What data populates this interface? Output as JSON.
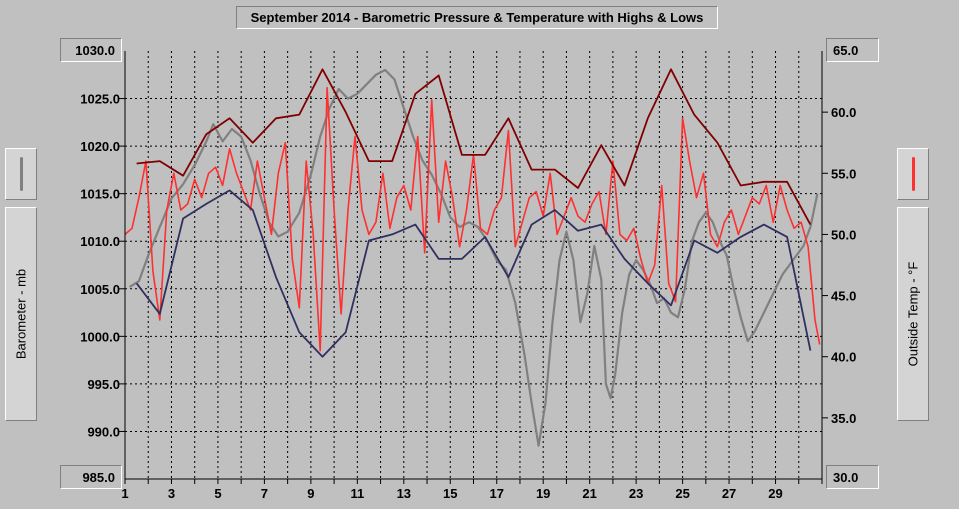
{
  "chart_data": {
    "type": "line",
    "title": "September 2014 - Barometric Pressure & Temperature with Highs & Lows",
    "left_axis": {
      "label": "Barometer - mb",
      "min": 985.0,
      "max": 1030.0,
      "ticks": [
        "990.0",
        "995.0",
        "1000.0",
        "1005.0",
        "1010.0",
        "1015.0",
        "1020.0",
        "1025.0"
      ],
      "tick_values": [
        990,
        995,
        1000,
        1005,
        1010,
        1015,
        1020,
        1025
      ],
      "top_label": "1030.0",
      "bottom_label": "985.0"
    },
    "right_axis": {
      "label": "Outside Temp - °F",
      "min": 30.0,
      "max": 65.0,
      "ticks": [
        "35.0",
        "40.0",
        "45.0",
        "50.0",
        "55.0",
        "60.0"
      ],
      "tick_values": [
        35,
        40,
        45,
        50,
        55,
        60
      ],
      "top_label": "65.0",
      "bottom_label": "30.0"
    },
    "x_axis": {
      "min": 1,
      "max": 31,
      "labels": [
        "1",
        "3",
        "5",
        "7",
        "9",
        "11",
        "13",
        "15",
        "17",
        "19",
        "21",
        "23",
        "25",
        "27",
        "29"
      ],
      "label_values": [
        1,
        3,
        5,
        7,
        9,
        11,
        13,
        15,
        17,
        19,
        21,
        23,
        25,
        27,
        29
      ]
    },
    "grid": true,
    "colors": {
      "barometer": "#808080",
      "temperature": "#ff3030",
      "temp_highs": "#800000",
      "temp_lows": "#303060",
      "grid": "#000000",
      "background": "#c0c0c0"
    },
    "series": [
      {
        "key": "barometer",
        "axis": "left",
        "x": [
          1.2,
          1.6,
          2.0,
          2.5,
          3.0,
          3.5,
          4.0,
          4.5,
          4.8,
          5.2,
          5.6,
          6.0,
          6.4,
          6.8,
          7.2,
          7.6,
          8.0,
          8.5,
          9.0,
          9.4,
          9.8,
          10.2,
          10.6,
          11.0,
          11.4,
          11.8,
          12.2,
          12.6,
          13.0,
          13.4,
          13.8,
          14.2,
          14.6,
          15.0,
          15.4,
          15.8,
          16.2,
          16.6,
          17.0,
          17.4,
          17.8,
          18.2,
          18.5,
          18.8,
          19.1,
          19.4,
          19.7,
          20.0,
          20.3,
          20.6,
          20.9,
          21.2,
          21.5,
          21.7,
          21.9,
          22.1,
          22.4,
          22.7,
          23.0,
          23.3,
          23.6,
          23.9,
          24.2,
          24.5,
          24.8,
          25.1,
          25.4,
          25.7,
          26.0,
          26.3,
          26.6,
          26.9,
          27.2,
          27.5,
          27.8,
          28.1,
          28.4,
          28.7,
          29.0,
          29.3,
          29.6,
          29.9,
          30.2,
          30.5,
          30.8
        ],
        "y": [
          1005.2,
          1005.8,
          1008.5,
          1011.5,
          1014.5,
          1016.0,
          1018.0,
          1020.5,
          1022.3,
          1020.5,
          1021.8,
          1021.0,
          1018.5,
          1015.0,
          1012.0,
          1010.5,
          1011.0,
          1013.0,
          1017.0,
          1021.0,
          1024.0,
          1026.0,
          1025.0,
          1025.5,
          1026.5,
          1027.5,
          1028.0,
          1027.0,
          1024.0,
          1021.0,
          1018.5,
          1017.0,
          1015.0,
          1012.5,
          1011.5,
          1012.0,
          1011.5,
          1010.0,
          1008.0,
          1007.0,
          1003.5,
          998.0,
          993.0,
          988.5,
          993.0,
          1001.5,
          1008.0,
          1011.0,
          1008.0,
          1001.5,
          1004.5,
          1009.5,
          1006.0,
          995.0,
          993.5,
          996.0,
          1002.5,
          1006.5,
          1008.0,
          1007.0,
          1005.5,
          1003.5,
          1004.0,
          1002.5,
          1002.0,
          1005.0,
          1010.0,
          1012.0,
          1013.0,
          1012.0,
          1010.0,
          1008.5,
          1005.0,
          1002.0,
          999.5,
          1000.5,
          1002.0,
          1003.5,
          1005.0,
          1006.5,
          1007.5,
          1008.5,
          1009.5,
          1011.5,
          1015.0
        ]
      },
      {
        "key": "temperature",
        "axis": "right",
        "x": [
          1.0,
          1.3,
          1.6,
          1.9,
          2.2,
          2.5,
          2.8,
          3.1,
          3.4,
          3.7,
          4.0,
          4.3,
          4.6,
          4.9,
          5.2,
          5.5,
          5.8,
          6.1,
          6.4,
          6.7,
          7.0,
          7.3,
          7.6,
          7.9,
          8.2,
          8.5,
          8.8,
          9.1,
          9.4,
          9.7,
          10.0,
          10.3,
          10.6,
          10.9,
          11.2,
          11.5,
          11.8,
          12.1,
          12.4,
          12.7,
          13.0,
          13.3,
          13.6,
          13.9,
          14.2,
          14.5,
          14.8,
          15.1,
          15.4,
          15.7,
          16.0,
          16.3,
          16.6,
          16.9,
          17.2,
          17.5,
          17.8,
          18.1,
          18.4,
          18.7,
          19.0,
          19.3,
          19.6,
          19.9,
          20.2,
          20.5,
          20.8,
          21.1,
          21.4,
          21.7,
          22.0,
          22.3,
          22.6,
          22.9,
          23.2,
          23.5,
          23.8,
          24.1,
          24.4,
          24.7,
          25.0,
          25.3,
          25.6,
          25.9,
          26.2,
          26.5,
          26.8,
          27.1,
          27.4,
          27.7,
          28.0,
          28.3,
          28.6,
          28.9,
          29.2,
          29.5,
          29.8,
          30.1,
          30.4,
          30.7,
          30.9
        ],
        "y": [
          50.0,
          50.5,
          53.0,
          56.0,
          47.0,
          43.0,
          52.0,
          55.0,
          52.0,
          52.5,
          54.5,
          53.0,
          55.0,
          55.5,
          54.0,
          57.0,
          55.0,
          53.5,
          52.0,
          56.0,
          53.0,
          50.0,
          55.0,
          57.5,
          48.0,
          44.0,
          56.0,
          50.0,
          40.5,
          62.0,
          52.0,
          43.5,
          52.0,
          58.0,
          52.0,
          50.0,
          51.0,
          55.0,
          50.5,
          53.0,
          54.0,
          52.0,
          58.0,
          48.5,
          61.0,
          51.0,
          56.0,
          53.0,
          49.0,
          52.0,
          56.5,
          50.5,
          50.0,
          52.0,
          53.0,
          58.5,
          49.0,
          51.0,
          53.0,
          53.5,
          51.5,
          55.0,
          50.0,
          51.5,
          53.0,
          51.5,
          51.0,
          52.5,
          53.5,
          50.0,
          56.0,
          50.0,
          49.5,
          50.5,
          48.0,
          46.0,
          47.5,
          54.0,
          46.0,
          44.5,
          59.5,
          56.0,
          53.0,
          55.0,
          50.0,
          49.0,
          51.0,
          52.0,
          50.0,
          51.5,
          53.0,
          52.5,
          54.0,
          51.0,
          54.0,
          52.0,
          50.5,
          51.0,
          49.0,
          43.0,
          41.0
        ]
      },
      {
        "key": "temp_highs",
        "axis": "right",
        "x": [
          1.5,
          2.5,
          3.5,
          4.5,
          5.5,
          6.5,
          7.5,
          8.5,
          9.5,
          10.5,
          11.5,
          12.5,
          13.5,
          14.5,
          15.5,
          16.5,
          17.5,
          18.5,
          19.5,
          20.5,
          21.5,
          22.5,
          23.5,
          24.5,
          25.5,
          26.5,
          27.5,
          28.5,
          29.5,
          30.5
        ],
        "y": [
          55.8,
          56.0,
          54.8,
          58.2,
          59.5,
          57.5,
          59.5,
          59.8,
          63.5,
          60.0,
          56.0,
          56.0,
          61.5,
          63.0,
          56.5,
          56.5,
          59.5,
          55.3,
          55.3,
          53.8,
          57.3,
          54.0,
          59.5,
          63.5,
          59.8,
          57.5,
          54.0,
          54.3,
          54.3,
          50.8
        ]
      },
      {
        "key": "temp_lows",
        "axis": "right",
        "x": [
          1.5,
          2.5,
          3.5,
          4.5,
          5.5,
          6.5,
          7.5,
          8.5,
          9.5,
          10.5,
          11.5,
          12.5,
          13.5,
          14.5,
          15.5,
          16.5,
          17.5,
          18.5,
          19.5,
          20.5,
          21.5,
          22.5,
          23.5,
          24.5,
          25.5,
          26.5,
          27.5,
          28.5,
          29.5,
          30.5
        ],
        "y": [
          46.0,
          43.5,
          51.3,
          52.5,
          53.6,
          52.0,
          46.5,
          42.0,
          40.0,
          42.0,
          49.5,
          50.0,
          50.8,
          48.0,
          48.0,
          49.8,
          46.5,
          50.8,
          52.0,
          50.3,
          50.8,
          48.0,
          46.0,
          44.2,
          49.5,
          48.5,
          49.8,
          50.8,
          49.8,
          40.5
        ]
      }
    ]
  }
}
